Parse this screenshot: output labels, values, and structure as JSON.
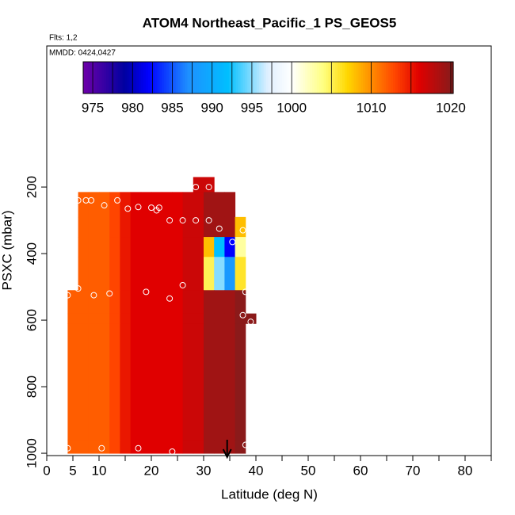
{
  "chart_data": {
    "type": "heatmap",
    "title": "ATOM4 Northeast_Pacific_1 PS_GEOS5",
    "subtitle": "Flts: 1,2",
    "annotation": "MMDD: 0424,0427",
    "x_label": "Latitude (deg N)",
    "y_label": "PSXC (mbar)",
    "xlim": [
      0,
      85
    ],
    "xticks": [
      0,
      5,
      10,
      20,
      30,
      40,
      50,
      60,
      70,
      80
    ],
    "xminor_ticks": [
      15,
      25,
      35,
      45,
      55,
      65,
      75,
      85
    ],
    "ylim": [
      -224,
      1007
    ],
    "yticks": [
      200,
      400,
      600,
      800,
      1000
    ],
    "zlim": [
      973.8,
      1020.3
    ],
    "zticks": [
      975,
      980,
      985,
      990,
      995,
      1000,
      1010,
      1020
    ],
    "zbreaks": [
      975,
      977.5,
      980,
      982.5,
      985,
      987.5,
      990,
      992.5,
      995,
      997.5,
      1000,
      1005,
      1010,
      1015,
      1020
    ],
    "colormap": [
      [
        974,
        "#6a00a8"
      ],
      [
        979,
        "#0000a0"
      ],
      [
        982,
        "#0000ff"
      ],
      [
        987,
        "#1e90ff"
      ],
      [
        992,
        "#00bfff"
      ],
      [
        997,
        "#e0f0ff"
      ],
      [
        1000,
        "#ffffff"
      ],
      [
        1004,
        "#ffff80"
      ],
      [
        1007,
        "#ffd700"
      ],
      [
        1010,
        "#ff8c00"
      ],
      [
        1013,
        "#ff4500"
      ],
      [
        1016,
        "#e00000"
      ],
      [
        1020,
        "#8b1a1a"
      ]
    ],
    "x_edges": [
      4,
      6,
      8,
      10,
      12,
      14,
      16,
      18,
      20,
      22,
      24,
      26,
      28,
      30,
      32,
      34,
      36,
      38,
      40
    ],
    "y_edges": [
      170,
      215,
      290,
      350,
      410,
      510,
      580,
      610,
      960,
      1000
    ],
    "z": [
      [
        null,
        null,
        null,
        null,
        null,
        null,
        null,
        null,
        null,
        null,
        null,
        null,
        1017,
        1017,
        null,
        null,
        null,
        null
      ],
      [
        null,
        1012,
        1012,
        1012,
        1013,
        1015,
        1016,
        1016,
        1016,
        1016,
        1016,
        1017,
        1017,
        1019,
        1019,
        1019,
        null,
        null
      ],
      [
        null,
        1012,
        1012,
        1012,
        1013,
        1015,
        1016,
        1016,
        1016,
        1016,
        1016,
        1017,
        1017,
        1019,
        1019,
        1019,
        1008,
        null
      ],
      [
        null,
        1012,
        1012,
        1012,
        1013,
        1015,
        1016,
        1016,
        1016,
        1016,
        1016,
        1017,
        1017,
        1008,
        992,
        982,
        1003,
        null
      ],
      [
        null,
        1012,
        1012,
        1012,
        1013,
        1015,
        1016,
        1016,
        1016,
        1016,
        1016,
        1017,
        1017,
        1005,
        995,
        988,
        1006,
        null
      ],
      [
        1012,
        1012,
        1012,
        1012,
        1013,
        1015,
        1016,
        1016,
        1016,
        1016,
        1016,
        1017,
        1017,
        1019,
        1019,
        1019,
        1020,
        null
      ],
      [
        1012,
        1012,
        1012,
        1012,
        1013,
        1015,
        1016,
        1016,
        1016,
        1016,
        1016,
        1017,
        1017,
        1019,
        1019,
        1019,
        1020,
        1020
      ],
      [
        1012,
        1012,
        1012,
        1012,
        1013,
        1015,
        1016,
        1016,
        1016,
        1016,
        1016,
        1017,
        1017,
        1019,
        1019,
        1019,
        1020,
        null
      ],
      [
        1012,
        1012,
        1012,
        1012,
        1013,
        1015,
        1016,
        1016,
        1016,
        1016,
        1016,
        1017,
        1017,
        1019,
        1019,
        1019,
        1020,
        null
      ]
    ],
    "points_x": [
      4,
      10.5,
      17.5,
      24,
      38,
      4,
      6,
      9,
      12,
      19,
      23.5,
      26,
      38,
      37.5,
      39,
      6,
      7.5,
      8.5,
      11,
      13.5,
      15.5,
      17.5,
      20,
      21,
      21.5,
      23.5,
      26,
      28.5,
      31,
      33,
      37.5,
      39,
      35.5,
      28.5,
      31
    ],
    "points_y": [
      985,
      985,
      985,
      995,
      975,
      525,
      505,
      525,
      520,
      515,
      535,
      495,
      515,
      585,
      605,
      240,
      240,
      240,
      255,
      240,
      265,
      260,
      262,
      270,
      262,
      300,
      300,
      300,
      300,
      325,
      330,
      330,
      365,
      200,
      200
    ],
    "arrow_x": 34.5
  }
}
